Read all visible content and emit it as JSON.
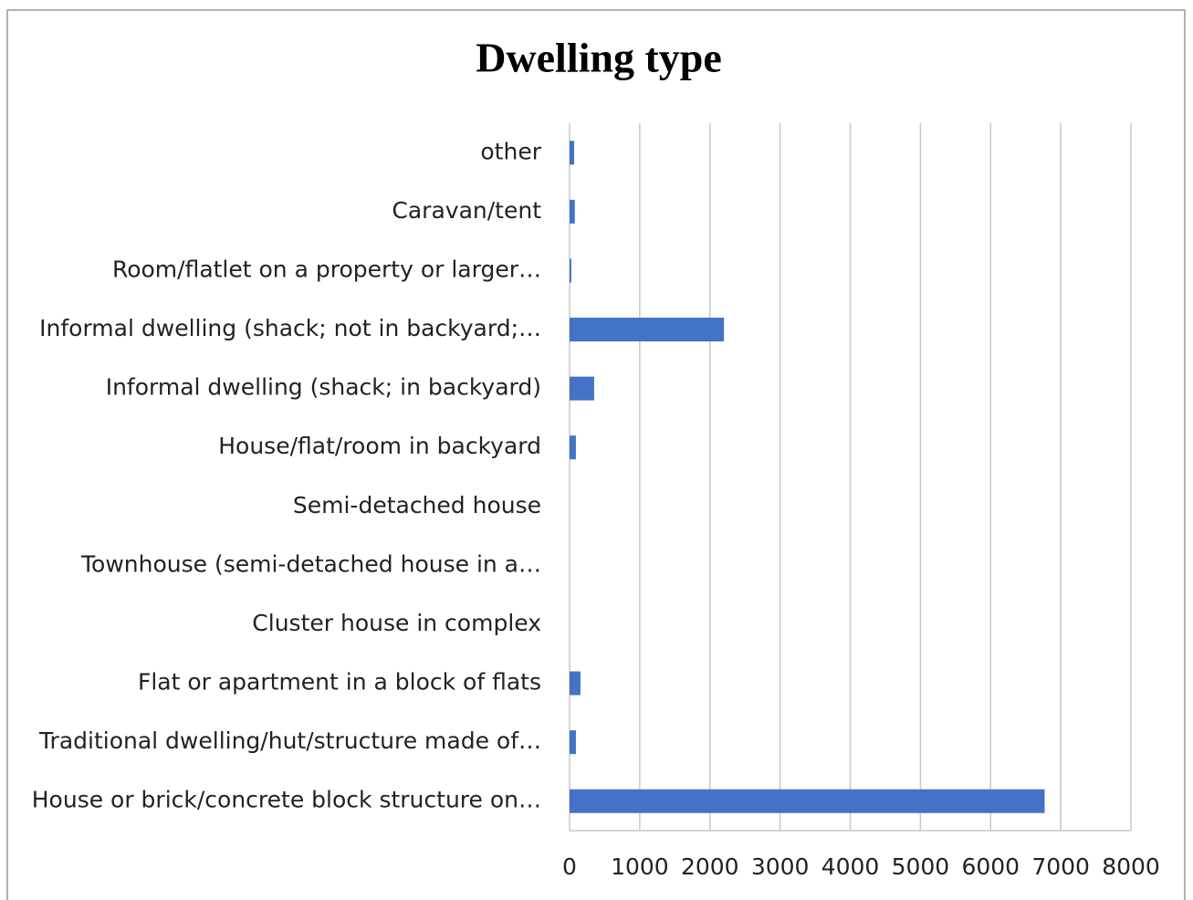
{
  "chart_data": {
    "type": "barh",
    "title": "Dwelling type",
    "categories": [
      "other",
      "Caravan/tent",
      "Room/flatlet on a property or larger…",
      "Informal dwelling (shack; not in backyard;…",
      "Informal dwelling (shack; in backyard)",
      "House/flat/room in backyard",
      "Semi-detached house",
      "Townhouse (semi-detached house in a…",
      "Cluster house in complex",
      "Flat or apartment in a block of flats",
      "Traditional dwelling/hut/structure made of…",
      "House or brick/concrete block structure on…"
    ],
    "values": [
      65,
      75,
      25,
      2200,
      350,
      90,
      0,
      0,
      0,
      155,
      90,
      6770
    ],
    "color": "#4472c4",
    "xlim": [
      0,
      8000
    ],
    "xticks": [
      0,
      1000,
      2000,
      3000,
      4000,
      5000,
      6000,
      7000,
      8000
    ],
    "grid": true
  }
}
